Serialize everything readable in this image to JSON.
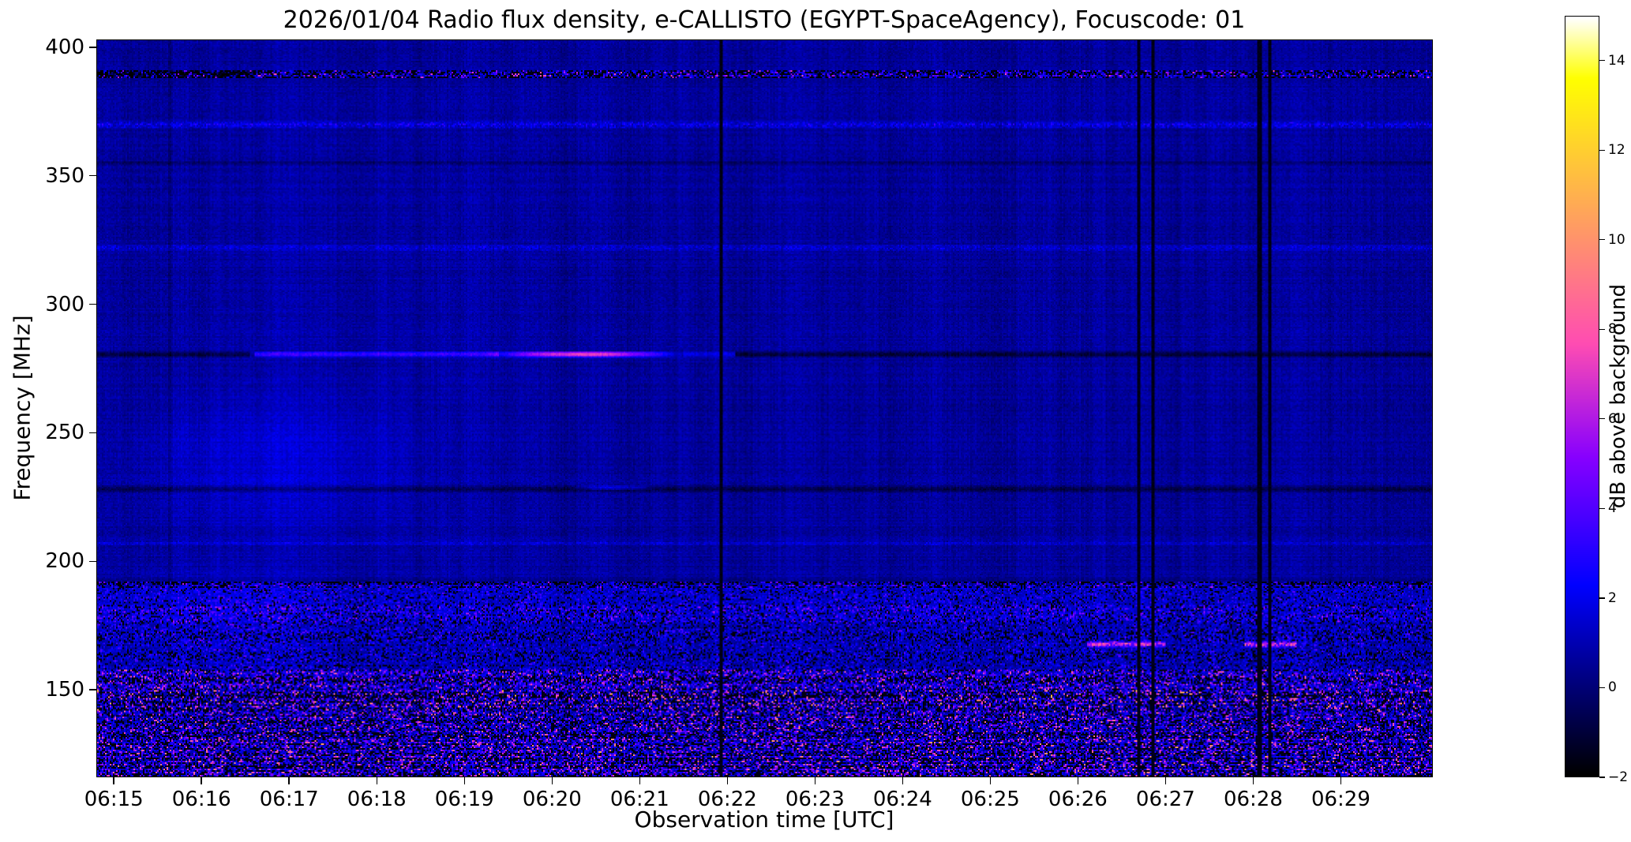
{
  "chart_data": {
    "type": "heatmap",
    "title": "2026/01/04  Radio flux density, e-CALLISTO (EGYPT-SpaceAgency), Focuscode: 01",
    "xlabel": "Observation time [UTC]",
    "ylabel": "Frequency [MHz]",
    "grid": false,
    "legend": "none",
    "x_ticks": [
      "06:15",
      "06:16",
      "06:17",
      "06:18",
      "06:19",
      "06:20",
      "06:21",
      "06:22",
      "06:23",
      "06:24",
      "06:25",
      "06:26",
      "06:27",
      "06:28",
      "06:29"
    ],
    "x_tick_minutes": [
      375,
      376,
      377,
      378,
      379,
      380,
      381,
      382,
      383,
      384,
      385,
      386,
      387,
      388,
      389
    ],
    "x_range_minutes": [
      374.8,
      390.05
    ],
    "y_ticks": [
      400,
      350,
      300,
      250,
      200,
      150
    ],
    "y_range_mhz": [
      116,
      403
    ],
    "colorbar": {
      "label": "dB above background",
      "ticks": [
        14,
        12,
        10,
        8,
        6,
        4,
        2,
        0,
        -2
      ],
      "range": [
        -2,
        15
      ],
      "colormap": "gnuplot2"
    },
    "features": {
      "background": {
        "mean": 0.15,
        "noise": 0.78,
        "row_ripple": 0.2,
        "col_stripe": 0.42
      },
      "glows": [
        {
          "t0": 374.8,
          "t1": 378.8,
          "f0": 205,
          "f1": 272,
          "amp": 0.75
        },
        {
          "t0": 374.8,
          "t1": 377.6,
          "f0": 148,
          "f1": 208,
          "amp": 0.5
        },
        {
          "t0": 374.8,
          "t1": 380.5,
          "f0": 116,
          "f1": 403,
          "amp": 0.22
        }
      ],
      "noise_bands": [
        {
          "f0": 388,
          "f1": 391.5,
          "dark_fraction": 0.5,
          "bright_amp": 5,
          "bright_pow": 2,
          "base_add": 0
        },
        {
          "f0": 189.5,
          "f1": 192,
          "dark_fraction": 0.35,
          "bright_amp": 3.5,
          "bright_pow": 2.2,
          "base_add": 0.2
        },
        {
          "f0": 183,
          "f1": 189.5,
          "dark_fraction": 0.12,
          "bright_amp": 2.2,
          "bright_pow": 2.5,
          "base_add": 0.3
        },
        {
          "f0": 176,
          "f1": 183,
          "dark_fraction": 0.18,
          "bright_amp": 3.2,
          "bright_pow": 2.4,
          "base_add": 0.5
        },
        {
          "f0": 169,
          "f1": 176,
          "dark_fraction": 0.22,
          "bright_amp": 2.6,
          "bright_pow": 2.6,
          "base_add": 0.2
        },
        {
          "f0": 158,
          "f1": 169,
          "dark_fraction": 0.18,
          "bright_amp": 2.4,
          "bright_pow": 2.8,
          "base_add": 0.1
        },
        {
          "f0": 150,
          "f1": 158,
          "dark_fraction": 0.3,
          "bright_amp": 5.5,
          "bright_pow": 2.2,
          "base_add": 0.3
        },
        {
          "f0": 143,
          "f1": 150,
          "dark_fraction": 0.38,
          "bright_amp": 7,
          "bright_pow": 2.4,
          "base_add": 0.2
        },
        {
          "f0": 131,
          "f1": 143,
          "dark_fraction": 0.3,
          "bright_amp": 6,
          "bright_pow": 2.6,
          "base_add": 0.2
        },
        {
          "f0": 116,
          "f1": 131,
          "dark_fraction": 0.32,
          "bright_amp": 6.5,
          "bright_pow": 2.4,
          "base_add": 0.3
        }
      ],
      "hlines": [
        {
          "f": 389.8,
          "hw": 1.8,
          "t0": 374.8,
          "t1": 376.6,
          "add": -2.5,
          "shape": "flat"
        },
        {
          "f": 370,
          "hw": 1.6,
          "t0": 374.8,
          "t1": 390.05,
          "add": 0.4,
          "shape": "flat",
          "jitter": 2.2
        },
        {
          "f": 355,
          "hw": 1.0,
          "t0": 374.8,
          "t1": 390.05,
          "add": -0.9,
          "shape": "flat"
        },
        {
          "f": 322,
          "hw": 1.3,
          "t0": 374.8,
          "t1": 390.05,
          "add": 0.5,
          "shape": "flat",
          "jitter": 1.4
        },
        {
          "f": 280.5,
          "hw": 1.4,
          "t0": 374.8,
          "t1": 376.55,
          "add": -1.6,
          "shape": "flat"
        },
        {
          "f": 280.5,
          "hw": 1.2,
          "t0": 376.6,
          "t1": 379.4,
          "add": 2.4,
          "shape": "flat",
          "jitter": 0.8
        },
        {
          "f": 280.5,
          "hw": 1.3,
          "t0": 379.2,
          "t1": 381.5,
          "add": 6.8,
          "shape": "peak"
        },
        {
          "f": 280.5,
          "hw": 1.2,
          "t0": 381.5,
          "t1": 382.1,
          "add": 1.2,
          "shape": "flat"
        },
        {
          "f": 280.5,
          "hw": 1.4,
          "t0": 382.1,
          "t1": 390.05,
          "add": -1.6,
          "shape": "flat"
        },
        {
          "f": 228,
          "hw": 1.6,
          "t0": 374.8,
          "t1": 390.05,
          "add": -1.2,
          "shape": "flat"
        },
        {
          "f": 228.5,
          "hw": 1.0,
          "t0": 380.2,
          "t1": 381.2,
          "add": 2.2,
          "shape": "peak"
        },
        {
          "f": 207,
          "hw": 1.1,
          "t0": 374.8,
          "t1": 390.05,
          "add": 0.3,
          "shape": "flat",
          "jitter": 1.0
        },
        {
          "f": 192,
          "hw": 2.0,
          "t0": 374.8,
          "t1": 390.05,
          "add": -0.5,
          "shape": "flat"
        },
        {
          "f": 167.5,
          "hw": 1.2,
          "t0": 386.1,
          "t1": 387.0,
          "add": 5.2,
          "shape": "flat",
          "jitter": 1.0
        },
        {
          "f": 167.5,
          "hw": 1.2,
          "t0": 387.9,
          "t1": 388.5,
          "add": 5.2,
          "shape": "flat",
          "jitter": 1.0
        }
      ],
      "vlines": [
        {
          "t": 381.93,
          "hw": 0.02,
          "mode": "set",
          "value": -1.8
        },
        {
          "t": 386.7,
          "hw": 0.018,
          "mode": "set",
          "value": -1.8
        },
        {
          "t": 386.86,
          "hw": 0.015,
          "mode": "set",
          "value": -1.8
        },
        {
          "t": 388.08,
          "hw": 0.02,
          "mode": "set",
          "value": -1.8
        },
        {
          "t": 388.19,
          "hw": 0.015,
          "mode": "set",
          "value": -1.8
        },
        {
          "t": 375.63,
          "hw": 0.012,
          "mode": "add",
          "value": -0.5
        },
        {
          "t": 377.12,
          "hw": 0.01,
          "mode": "add",
          "value": -0.4
        }
      ]
    }
  }
}
